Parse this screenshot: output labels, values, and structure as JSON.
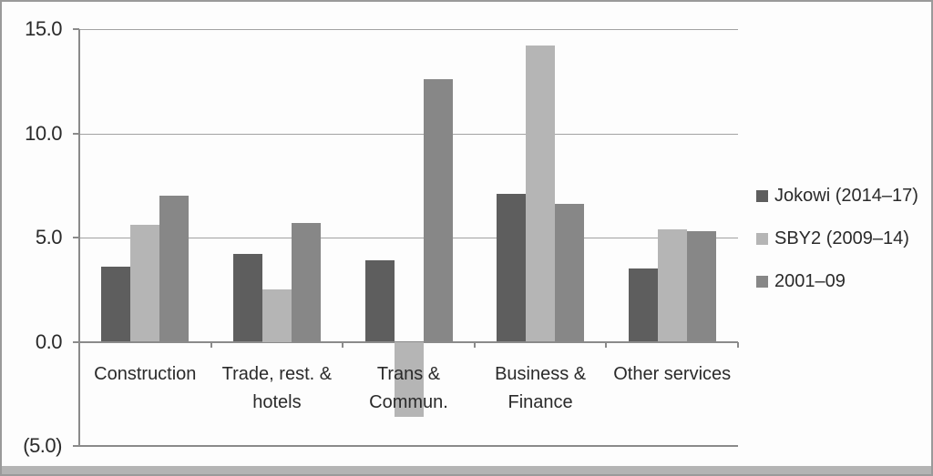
{
  "figure": {
    "background": "#fdfdfd",
    "border_color": "#9a9a9a",
    "bottom_strip_color": "#b4b4b4"
  },
  "chart_data": {
    "type": "bar",
    "title": "",
    "xlabel": "",
    "ylabel": "",
    "categories": [
      "Construction",
      "Trade, rest. &\nhotels",
      "Trans &\nCommun.",
      "Business &\nFinance",
      "Other services"
    ],
    "series": [
      {
        "name": "Jokowi (2014–17)",
        "color": "#5e5e5e",
        "values": [
          3.6,
          4.2,
          3.9,
          7.1,
          3.5
        ]
      },
      {
        "name": "SBY2 (2009–14)",
        "color": "#b5b5b5",
        "values": [
          5.6,
          2.5,
          -3.6,
          14.2,
          5.4
        ]
      },
      {
        "name": "2001–09",
        "color": "#878787",
        "values": [
          7.0,
          5.7,
          12.6,
          6.6,
          5.3
        ]
      }
    ],
    "y_axis": {
      "min": -5,
      "max": 15,
      "ticks": [
        {
          "value": 15,
          "label": "15.0"
        },
        {
          "value": 10,
          "label": "10.0"
        },
        {
          "value": 5,
          "label": "5.0"
        },
        {
          "value": 0,
          "label": "0.0"
        },
        {
          "value": -5,
          "label": "(5.0)"
        }
      ]
    },
    "grid": true,
    "legend_position": "right",
    "colors": {
      "grid_line": "#a2a2a2",
      "axis_line": "#8a8a8a",
      "text": "#2a2a2a"
    }
  }
}
